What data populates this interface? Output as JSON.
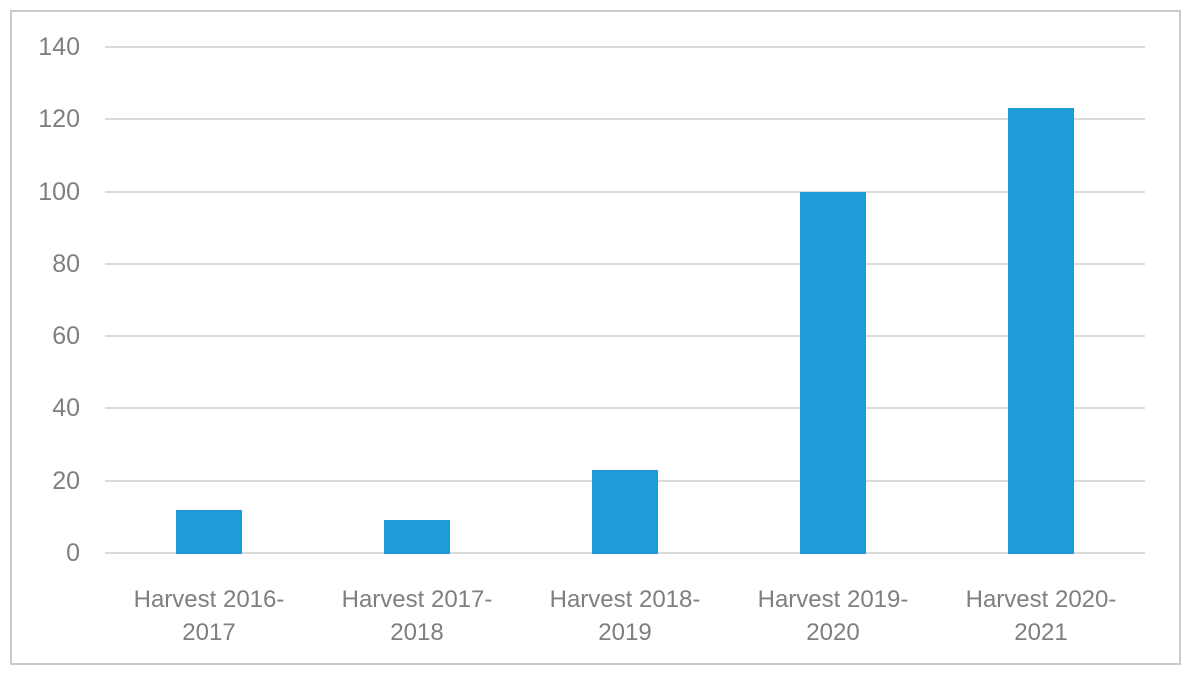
{
  "chart_data": {
    "type": "bar",
    "categories": [
      "Harvest 2016-2017",
      "Harvest 2017-2018",
      "Harvest 2018-2019",
      "Harvest 2019-2020",
      "Harvest 2020-2021"
    ],
    "values": [
      12,
      9,
      23,
      100,
      123
    ],
    "title": "",
    "xlabel": "",
    "ylabel": "",
    "ylim": [
      0,
      140
    ],
    "yticks": [
      0,
      20,
      40,
      60,
      80,
      100,
      120,
      140
    ],
    "grid": "horizontal",
    "legend": "none",
    "colors": {
      "bar": "#1F9CD8",
      "gridline": "#DADADA",
      "tick_label": "#7F7F7F",
      "frame_border": "#CBCBCB",
      "background": "#FFFFFF"
    }
  }
}
